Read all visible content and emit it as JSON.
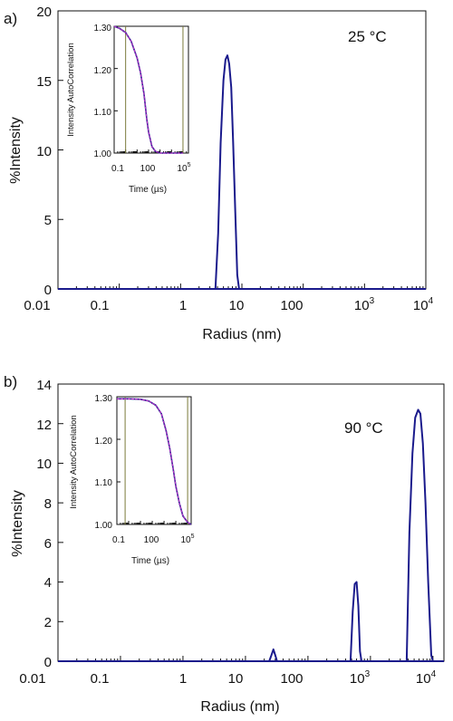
{
  "colors": {
    "main_line": "#1a1a8c",
    "fit_line": "#cc33cc",
    "vline": "#7a7a3a",
    "axis": "#111111"
  },
  "chart_data": [
    {
      "type": "line",
      "panel_label": "a)",
      "annotation": "25 °C",
      "xlabel": "Radius (nm)",
      "ylabel": "%Intensity",
      "xscale": "log",
      "xlim": [
        0.01,
        10000
      ],
      "ylim": [
        0,
        20
      ],
      "yticks": [
        "0",
        "5",
        "10",
        "15",
        "20"
      ],
      "xticks": [
        {
          "base": "0.01",
          "exp": ""
        },
        {
          "base": "0.1",
          "exp": ""
        },
        {
          "base": "1",
          "exp": ""
        },
        {
          "base": "10",
          "exp": ""
        },
        {
          "base": "100",
          "exp": ""
        },
        {
          "base": "10",
          "exp": "3"
        },
        {
          "base": "10",
          "exp": "4"
        }
      ],
      "series": [
        {
          "x": [
            3.7,
            4.1,
            4.5,
            5.0,
            5.4,
            5.8,
            6.2,
            6.7,
            7.2,
            7.8,
            8.4,
            9.0
          ],
          "y": [
            0,
            4.0,
            10.5,
            15.0,
            16.5,
            16.8,
            16.2,
            14.5,
            10.5,
            5.5,
            1.0,
            0
          ]
        }
      ],
      "inset": {
        "ylabel": "Intensity AutoCorrelation",
        "xlabel": "Time (µs)",
        "xscale": "log",
        "xlim": [
          0.1,
          300000
        ],
        "ylim": [
          1.0,
          1.3
        ],
        "yticks": [
          "1.00",
          "1.10",
          "1.20",
          "1.30"
        ],
        "xticks": [
          {
            "base": "0.1",
            "exp": ""
          },
          {
            "base": "100",
            "exp": ""
          },
          {
            "base": "10",
            "exp": "5"
          }
        ],
        "vlines": [
          1,
          100000
        ],
        "series": [
          {
            "x": [
              0.1,
              0.3,
              1,
              3,
              10,
              20,
              40,
              70,
              100,
              200,
              400,
              1000,
              3000,
              100000
            ],
            "y": [
              1.3,
              1.295,
              1.285,
              1.265,
              1.225,
              1.19,
              1.14,
              1.08,
              1.05,
              1.015,
              1.004,
              1.0,
              1.0,
              1.0
            ]
          }
        ]
      }
    },
    {
      "type": "line",
      "panel_label": "b)",
      "annotation": "90 °C",
      "xlabel": "Radius (nm)",
      "ylabel": "%Intensity",
      "xscale": "log",
      "xlim": [
        0.01,
        15000
      ],
      "ylim": [
        0,
        14
      ],
      "yticks": [
        "0",
        "2",
        "4",
        "6",
        "8",
        "10",
        "12",
        "14"
      ],
      "xticks": [
        {
          "base": "0.01",
          "exp": ""
        },
        {
          "base": "0.1",
          "exp": ""
        },
        {
          "base": "1",
          "exp": ""
        },
        {
          "base": "10",
          "exp": ""
        },
        {
          "base": "100",
          "exp": ""
        },
        {
          "base": "10",
          "exp": "3"
        },
        {
          "base": "10",
          "exp": "4"
        }
      ],
      "series": [
        {
          "x": [
            0.01,
            24,
            26,
            28,
            30,
            32,
            34,
            480,
            520,
            560,
            600,
            640,
            680,
            720,
            3800,
            4200,
            4700,
            5200,
            5800,
            6300,
            6900,
            7600,
            8400,
            9400,
            10000,
            15000
          ],
          "y": [
            0,
            0,
            0.3,
            0.6,
            0.3,
            0,
            0,
            0,
            2.5,
            3.9,
            4.0,
            2.8,
            0.5,
            0,
            0,
            6.5,
            10.5,
            12.3,
            12.7,
            12.5,
            11.0,
            8.0,
            4.0,
            0.3,
            0,
            0
          ]
        }
      ],
      "inset": {
        "ylabel": "Intensity AutoCorrelation",
        "xlabel": "Time (µs)",
        "xscale": "log",
        "xlim": [
          0.1,
          200000
        ],
        "ylim": [
          1.0,
          1.3
        ],
        "yticks": [
          "1.00",
          "1.10",
          "1.20",
          "1.30"
        ],
        "xticks": [
          {
            "base": "0.1",
            "exp": ""
          },
          {
            "base": "100",
            "exp": ""
          },
          {
            "base": "10",
            "exp": "5"
          }
        ],
        "vlines": [
          0.5,
          100000
        ],
        "series": [
          {
            "x": [
              0.1,
              1,
              10,
              50,
              200,
              600,
              1500,
              3000,
              6000,
              10000,
              20000,
              40000,
              100000,
              200000
            ],
            "y": [
              1.295,
              1.295,
              1.294,
              1.29,
              1.28,
              1.26,
              1.22,
              1.18,
              1.13,
              1.09,
              1.05,
              1.02,
              1.005,
              1.0
            ]
          }
        ]
      }
    }
  ]
}
